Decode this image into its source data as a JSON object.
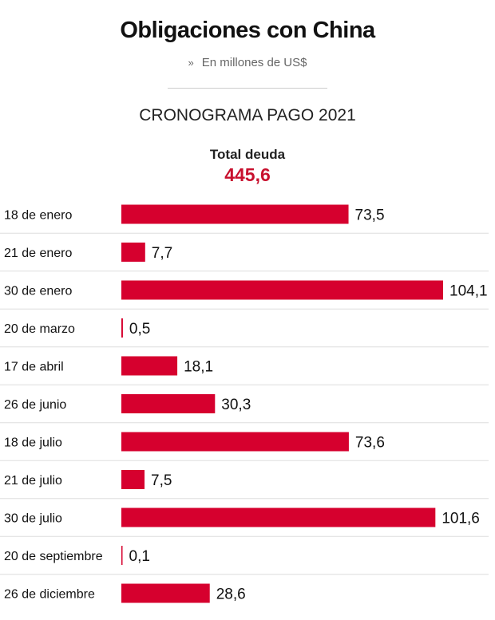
{
  "header": {
    "title": "Obligaciones con China",
    "subtitle_marker": "»",
    "subtitle": "En millones de US$",
    "section_title": "CRONOGRAMA PAGO 2021",
    "total_label": "Total deuda",
    "total_value": "445,6"
  },
  "colors": {
    "bar": "#d6002e",
    "total": "#c8102e",
    "row_divider": "#dddddd"
  },
  "chart_data": {
    "type": "bar",
    "orientation": "horizontal",
    "title": "Obligaciones con China",
    "subtitle": "En millones de US$",
    "categories": [
      "18 de enero",
      "21 de enero",
      "30 de enero",
      "20 de marzo",
      "17 de abril",
      "26 de junio",
      "18 de julio",
      "21 de julio",
      "30 de julio",
      "20 de septiembre",
      "26 de diciembre"
    ],
    "values": [
      73.5,
      7.7,
      104.1,
      0.5,
      18.1,
      30.3,
      73.6,
      7.5,
      101.6,
      0.1,
      28.6
    ],
    "value_labels": [
      "73,5",
      "7,7",
      "104,1",
      "0,5",
      "18,1",
      "30,3",
      "73,6",
      "7,5",
      "101,6",
      "0,1",
      "28,6"
    ],
    "xlim": [
      0,
      104.1
    ],
    "grid": false,
    "legend": "none"
  }
}
